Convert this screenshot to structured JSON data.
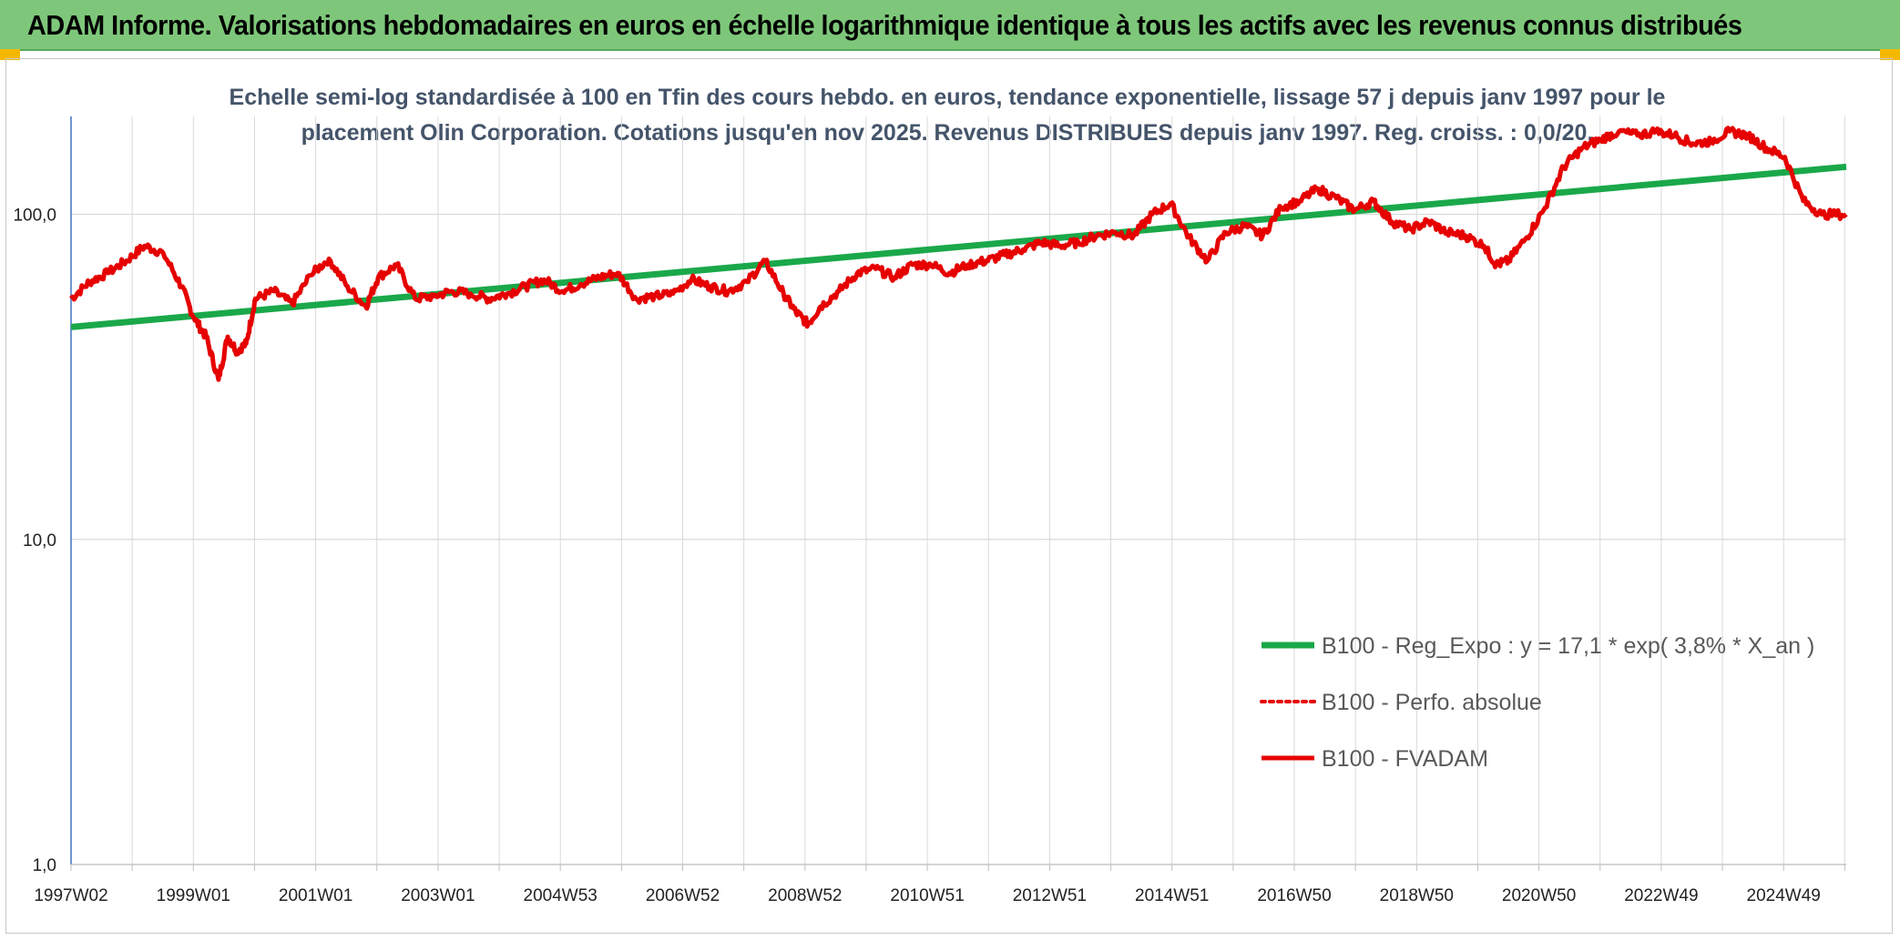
{
  "banner": {
    "title": "ADAM Informe. Valorisations hebdomadaires en euros en échelle logarithmique identique à tous les actifs avec les revenus connus distribués"
  },
  "colors": {
    "banner_bg": "#7ec77a",
    "corner_accent": "#f5b800",
    "trend": "#1aa84a",
    "fvadam": "#e60000",
    "perfo": "#e60000",
    "grid": "#d9d9d9",
    "axis": "#4472c4",
    "title_text": "#44546a"
  },
  "chart_data": {
    "type": "line",
    "title_line1": "Echelle semi-log standardisée à 100 en Tfin des cours hebdo. en euros, tendance exponentielle, lissage 57 j depuis janv 1997 pour le",
    "title_line2": "placement Olin Corporation.  Cotations jusqu'en nov 2025. Revenus DISTRIBUES depuis janv 1997. Reg. croiss. : 0,0/20.",
    "y_scale": "log",
    "ylim": [
      1,
      200
    ],
    "xlim": [
      1997.0,
      2025.9
    ],
    "y_ticks": [
      1,
      10,
      100
    ],
    "y_tick_labels": [
      "1,0",
      "10,0",
      "100,0"
    ],
    "x_tick_labels": [
      "1997W02",
      "1999W01",
      "2001W01",
      "2003W01",
      "2004W53",
      "2006W52",
      "2008W52",
      "2010W51",
      "2012W51",
      "2014W51",
      "2016W50",
      "2018W50",
      "2020W50",
      "2022W49",
      "2024W49"
    ],
    "grid": true,
    "legend_position": "bottom-right",
    "series": [
      {
        "name": "B100 - Reg_Expo : y = 17,1 * exp( 3,8% *  X_an )",
        "style": "solid-thick",
        "x": [
          1997.0,
          2025.9
        ],
        "y": [
          45,
          140
        ]
      },
      {
        "name": "B100 - Perfo. absolue",
        "style": "dotted",
        "x": [],
        "y": []
      },
      {
        "name": "B100 - FVADAM",
        "style": "solid",
        "x": [
          1997.0,
          1997.3,
          1997.6,
          1997.9,
          1998.2,
          1998.5,
          1998.8,
          1999.0,
          1999.2,
          1999.4,
          1999.55,
          1999.7,
          1999.85,
          2000.0,
          2000.3,
          2000.6,
          2000.9,
          2001.2,
          2001.5,
          2001.8,
          2002.0,
          2002.3,
          2002.6,
          2002.9,
          2003.2,
          2003.5,
          2003.8,
          2004.1,
          2004.4,
          2004.7,
          2005.0,
          2005.3,
          2005.6,
          2005.9,
          2006.2,
          2006.5,
          2006.8,
          2007.1,
          2007.4,
          2007.7,
          2008.0,
          2008.3,
          2008.6,
          2008.8,
          2009.0,
          2009.2,
          2009.5,
          2009.8,
          2010.1,
          2010.4,
          2010.7,
          2011.0,
          2011.3,
          2011.6,
          2011.9,
          2012.2,
          2012.5,
          2012.8,
          2013.1,
          2013.4,
          2013.7,
          2014.0,
          2014.3,
          2014.6,
          2014.9,
          2015.2,
          2015.5,
          2015.8,
          2016.1,
          2016.4,
          2016.7,
          2017.0,
          2017.3,
          2017.6,
          2017.9,
          2018.2,
          2018.5,
          2018.8,
          2019.1,
          2019.4,
          2019.7,
          2020.0,
          2020.2,
          2020.4,
          2020.7,
          2021.0,
          2021.3,
          2021.6,
          2021.9,
          2022.2,
          2022.5,
          2022.8,
          2023.1,
          2023.4,
          2023.7,
          2024.0,
          2024.3,
          2024.6,
          2024.9,
          2025.2,
          2025.5,
          2025.9
        ],
        "y": [
          55,
          62,
          66,
          72,
          80,
          76,
          60,
          48,
          42,
          31,
          42,
          38,
          40,
          55,
          58,
          53,
          65,
          73,
          60,
          52,
          64,
          70,
          55,
          56,
          58,
          57,
          55,
          57,
          60,
          63,
          58,
          61,
          64,
          66,
          55,
          56,
          57,
          63,
          60,
          58,
          62,
          72,
          57,
          50,
          46,
          52,
          58,
          66,
          68,
          64,
          70,
          70,
          66,
          70,
          72,
          75,
          78,
          82,
          80,
          82,
          86,
          88,
          86,
          100,
          108,
          85,
          72,
          88,
          92,
          86,
          105,
          110,
          120,
          112,
          103,
          110,
          95,
          90,
          95,
          88,
          86,
          80,
          70,
          72,
          85,
          105,
          140,
          160,
          170,
          180,
          175,
          180,
          175,
          165,
          168,
          180,
          175,
          160,
          150,
          110,
          100,
          100
        ]
      }
    ]
  }
}
